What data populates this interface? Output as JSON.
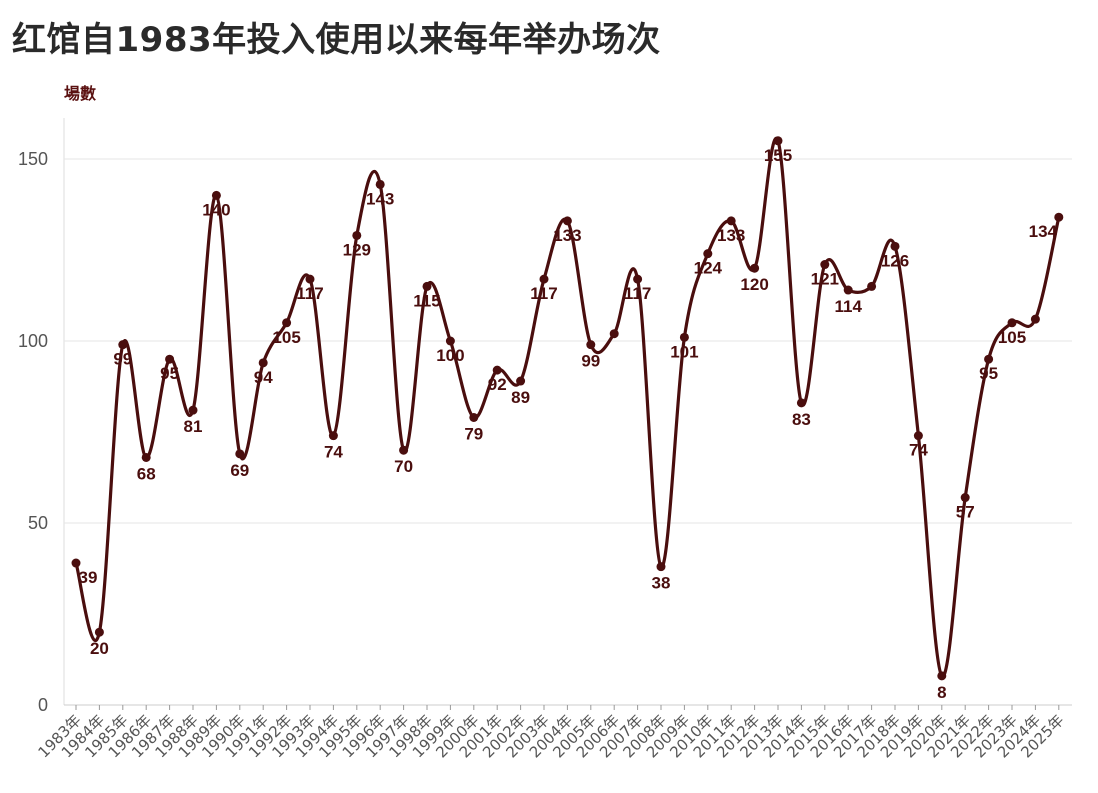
{
  "chart_data": {
    "type": "line",
    "title": "红馆自1983年投入使用以来每年举办场次",
    "ylabel": "場數",
    "xlabel": "",
    "ylim": [
      0,
      160
    ],
    "yticks": [
      0,
      50,
      100,
      150
    ],
    "grid": true,
    "line_color": "#4a0e0e",
    "categories": [
      "1983年",
      "1984年",
      "1985年",
      "1986年",
      "1987年",
      "1988年",
      "1989年",
      "1990年",
      "1991年",
      "1992年",
      "1993年",
      "1994年",
      "1995年",
      "1996年",
      "1997年",
      "1998年",
      "1999年",
      "2000年",
      "2001年",
      "2002年",
      "2003年",
      "2004年",
      "2005年",
      "2006年",
      "2007年",
      "2008年",
      "2009年",
      "2010年",
      "2011年",
      "2012年",
      "2013年",
      "2014年",
      "2015年",
      "2016年",
      "2017年",
      "2018年",
      "2019年",
      "2020年",
      "2021年",
      "2022年",
      "2023年",
      "2024年",
      "2025年"
    ],
    "values": [
      39,
      20,
      99,
      68,
      95,
      81,
      140,
      69,
      94,
      105,
      117,
      74,
      129,
      143,
      70,
      115,
      100,
      79,
      92,
      89,
      117,
      133,
      99,
      102,
      117,
      38,
      101,
      124,
      133,
      120,
      155,
      83,
      121,
      114,
      115,
      126,
      74,
      8,
      57,
      95,
      105,
      106,
      134
    ],
    "labels": [
      "39",
      "20",
      "99",
      "68",
      "95",
      "81",
      "140",
      "69",
      "94",
      "105",
      "117",
      "74",
      "129",
      "143",
      "70",
      "115",
      "100",
      "79",
      "92",
      "89",
      "117",
      "133",
      "99",
      "",
      "117",
      "38",
      "101",
      "124",
      "133",
      "120",
      "155",
      "83",
      "121",
      "114",
      "",
      "126",
      "74",
      "8",
      "57",
      "95",
      "105",
      "",
      "134"
    ]
  }
}
